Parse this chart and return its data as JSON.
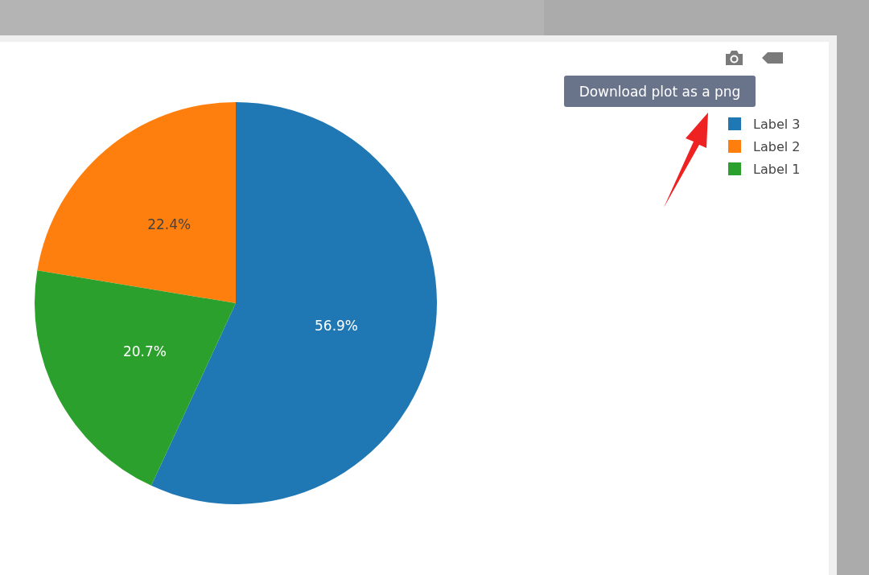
{
  "chart_data": {
    "type": "pie",
    "categories": [
      "Label 3",
      "Label 2",
      "Label 1"
    ],
    "values": [
      56.9,
      22.4,
      20.7
    ],
    "colors": [
      "#1f77b4",
      "#ff7f0e",
      "#2ca02c"
    ],
    "value_labels": [
      "56.9%",
      "22.4%",
      "20.7%"
    ],
    "legend": "top right",
    "annotations": [
      "Download plot as a png"
    ]
  }
}
